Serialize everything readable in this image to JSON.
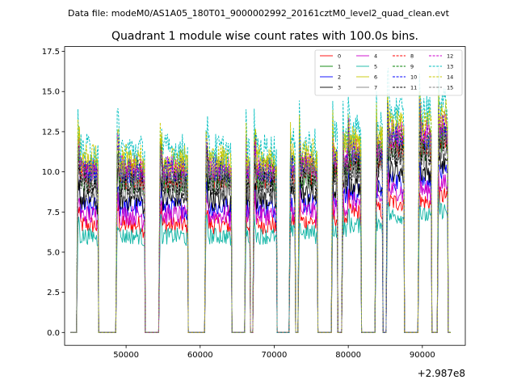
{
  "chart_data": {
    "type": "line",
    "suptitle": "Data file: modeM0/AS1A05_180T01_9000002992_20161cztM0_level2_quad_clean.evt",
    "title": "Quadrant 1 module wise count rates with 100.0s bins.",
    "xlabel": "",
    "ylabel": "",
    "x_offset_label": "+2.987e8",
    "xlim": [
      41700,
      95800
    ],
    "ylim": [
      -0.8,
      17.8
    ],
    "x_ticks": [
      50000,
      60000,
      70000,
      80000,
      90000
    ],
    "x_tick_labels": [
      "50000",
      "60000",
      "70000",
      "80000",
      "90000"
    ],
    "y_ticks": [
      0.0,
      2.5,
      5.0,
      7.5,
      10.0,
      12.5,
      15.0,
      17.5
    ],
    "y_tick_labels": [
      "0.0",
      "2.5",
      "5.0",
      "7.5",
      "10.0",
      "12.5",
      "15.0",
      "17.5"
    ],
    "grid": false,
    "legend_location": "top-right",
    "bin_seconds": 100,
    "orbits": [
      {
        "start": 43500,
        "end": 46200,
        "trend": 0.0
      },
      {
        "start": 48800,
        "end": 52500,
        "trend": 0.0
      },
      {
        "start": 54600,
        "end": 58300,
        "trend": 0.0
      },
      {
        "start": 60800,
        "end": 64200,
        "trend": 0.0
      },
      {
        "start": 66200,
        "end": 66700,
        "trend": 0.0
      },
      {
        "start": 67300,
        "end": 70300,
        "trend": 0.0
      },
      {
        "start": 72200,
        "end": 72800,
        "trend": 0.3
      },
      {
        "start": 73400,
        "end": 75800,
        "trend": 0.3
      },
      {
        "start": 77900,
        "end": 78500,
        "trend": 0.6
      },
      {
        "start": 79300,
        "end": 79900,
        "trend": 0.7
      },
      {
        "start": 80000,
        "end": 81700,
        "trend": 1.0
      },
      {
        "start": 83800,
        "end": 84600,
        "trend": 1.2
      },
      {
        "start": 85300,
        "end": 87500,
        "trend": 1.9
      },
      {
        "start": 89600,
        "end": 91200,
        "trend": 1.9
      },
      {
        "start": 92200,
        "end": 93400,
        "trend": 2.4
      }
    ],
    "series": [
      {
        "name": "0",
        "color": "#ff0000",
        "dash": "solid",
        "level": 6.7
      },
      {
        "name": "1",
        "color": "#008000",
        "dash": "solid",
        "level": 9.5
      },
      {
        "name": "2",
        "color": "#0000ff",
        "dash": "solid",
        "level": 7.8
      },
      {
        "name": "3",
        "color": "#000000",
        "dash": "solid",
        "level": 8.3
      },
      {
        "name": "4",
        "color": "#cc00cc",
        "dash": "solid",
        "level": 7.3
      },
      {
        "name": "5",
        "color": "#11b5a5",
        "dash": "solid",
        "level": 6.0
      },
      {
        "name": "6",
        "color": "#c8c800",
        "dash": "solid",
        "level": 10.5
      },
      {
        "name": "7",
        "color": "#808080",
        "dash": "solid",
        "level": 9.0
      },
      {
        "name": "8",
        "color": "#ff0000",
        "dash": "dashed",
        "level": 9.7
      },
      {
        "name": "9",
        "color": "#008000",
        "dash": "dashed",
        "level": 9.9
      },
      {
        "name": "10",
        "color": "#0000ff",
        "dash": "dashed",
        "level": 10.1
      },
      {
        "name": "11",
        "color": "#000000",
        "dash": "dashed",
        "level": 9.2
      },
      {
        "name": "12",
        "color": "#cc00cc",
        "dash": "dashed",
        "level": 10.2
      },
      {
        "name": "13",
        "color": "#00bfbf",
        "dash": "dashed",
        "level": 11.4
      },
      {
        "name": "14",
        "color": "#c8c800",
        "dash": "dashed",
        "level": 10.8
      },
      {
        "name": "15",
        "color": "#808080",
        "dash": "dashed",
        "level": 9.6
      }
    ]
  }
}
